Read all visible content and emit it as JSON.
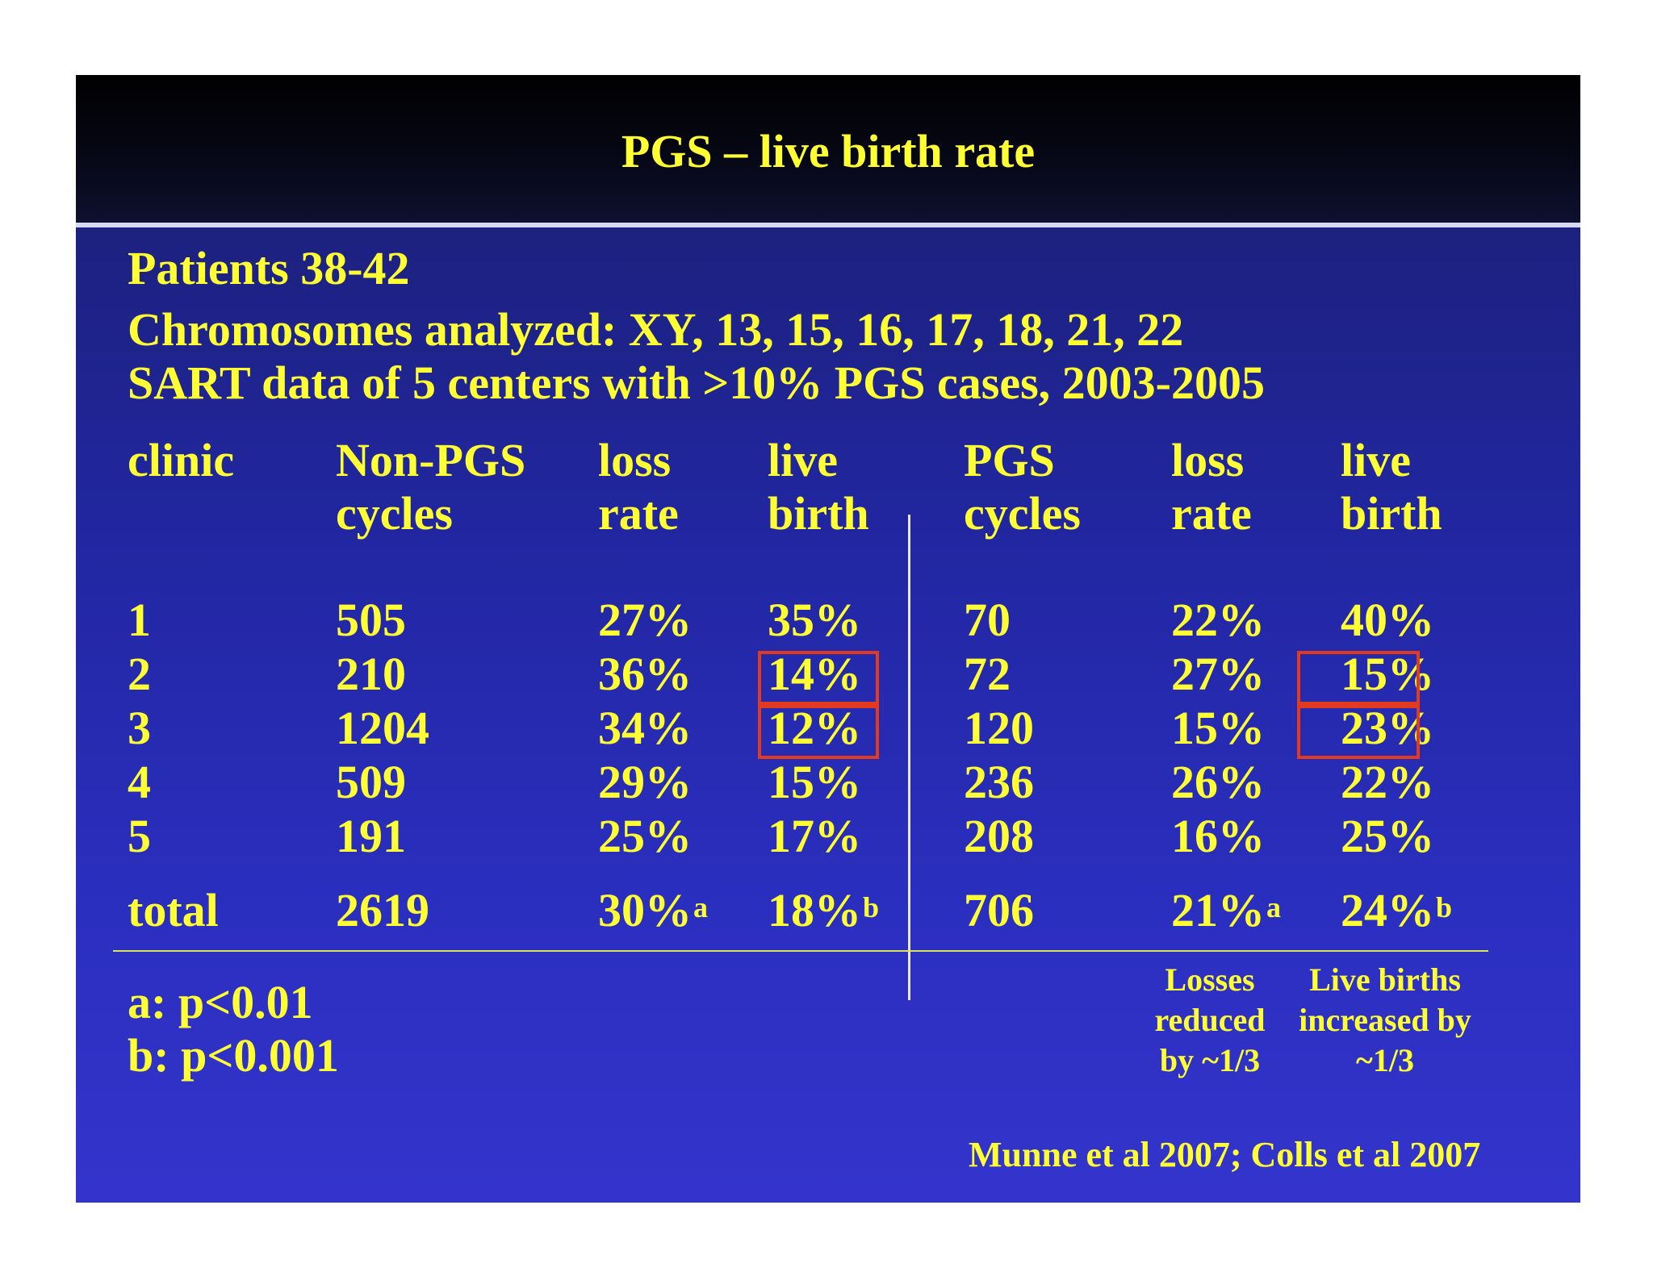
{
  "title": "PGS – live birth rate",
  "intro": {
    "line1": "Patients 38-42",
    "line2": "Chromosomes analyzed: XY, 13, 15, 16, 17, 18, 21, 22",
    "line3": "SART data of 5 centers with >10% PGS cases, 2003-2005"
  },
  "headers": {
    "clinic": "clinic",
    "nonpgs_1": "Non-PGS",
    "nonpgs_2": "cycles",
    "loss1_1": "loss",
    "loss1_2": "rate",
    "live1_1": "live",
    "live1_2": "birth",
    "pgs_1": "PGS",
    "pgs_2": "cycles",
    "loss2_1": "loss",
    "loss2_2": "rate",
    "live2_1": "live",
    "live2_2": "birth"
  },
  "rows": [
    {
      "clinic": "1",
      "nonpgs": "505",
      "loss1": "27%",
      "live1": "35%",
      "pgs": "70",
      "loss2": "22%",
      "live2": "40%"
    },
    {
      "clinic": "2",
      "nonpgs": "210",
      "loss1": "36%",
      "live1": "14%",
      "pgs": "72",
      "loss2": "27%",
      "live2": "15%"
    },
    {
      "clinic": "3",
      "nonpgs": "1204",
      "loss1": "34%",
      "live1": "12%",
      "pgs": "120",
      "loss2": "15%",
      "live2": "23%"
    },
    {
      "clinic": "4",
      "nonpgs": "509",
      "loss1": "29%",
      "live1": "15%",
      "pgs": "236",
      "loss2": "26%",
      "live2": "22%"
    },
    {
      "clinic": "5",
      "nonpgs": "191",
      "loss1": "25%",
      "live1": "17%",
      "pgs": "208",
      "loss2": "16%",
      "live2": "25%"
    }
  ],
  "total": {
    "label": "total",
    "nonpgs": "2619",
    "loss1": "30%",
    "loss1_sup": "a",
    "live1": "18%",
    "live1_sup": "b",
    "pgs": "706",
    "loss2": "21%",
    "loss2_sup": "a",
    "live2": "24%",
    "live2_sup": "b"
  },
  "footnotes": {
    "a": "a: p<0.01",
    "b": "b: p<0.001"
  },
  "notes": {
    "losses_1": "Losses",
    "losses_2": "reduced",
    "losses_3": "by ~1/3",
    "births_1": "Live births",
    "births_2": "increased by",
    "births_3": "~1/3"
  },
  "citation": "Munne et al 2007; Colls et al 2007",
  "colors": {
    "text": "#ffff33",
    "highlight": "#e23a1e",
    "background": "#2b2fc0"
  }
}
